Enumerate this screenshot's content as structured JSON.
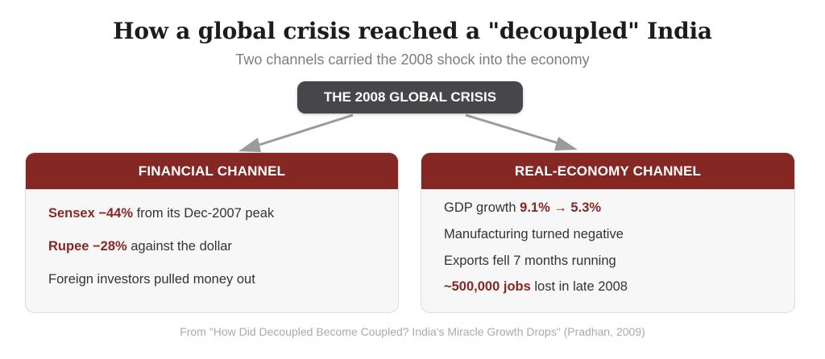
{
  "title": "How a global crisis reached a \"decoupled\" India",
  "subtitle": "Two channels carried the 2008 shock into the economy",
  "root": "THE 2008 GLOBAL CRISIS",
  "financial": {
    "header": "FINANCIAL CHANNEL",
    "items": [
      {
        "highlight": "Sensex −44%",
        "text": " from its Dec-2007 peak"
      },
      {
        "highlight": "Rupee −28%",
        "text": " against the dollar"
      },
      {
        "highlight": "",
        "text": "Foreign investors pulled money out"
      }
    ]
  },
  "real": {
    "header": "REAL-ECONOMY CHANNEL",
    "items": [
      {
        "before": "GDP growth ",
        "highlight": "9.1% → 5.3%",
        "text": ""
      },
      {
        "before": "",
        "highlight": "",
        "text": "Manufacturing turned negative"
      },
      {
        "before": "",
        "highlight": "",
        "text": "Exports fell 7 months running"
      },
      {
        "before": "",
        "highlight": "~500,000 jobs",
        "text": " lost in late 2008"
      }
    ]
  },
  "source": "From \"How Did Decoupled Become Coupled? India's Miracle Growth Drops\" (Pradhan, 2009)",
  "colors": {
    "accent": "#852823",
    "root": "#46464b",
    "arrow": "#9a9aa0"
  }
}
